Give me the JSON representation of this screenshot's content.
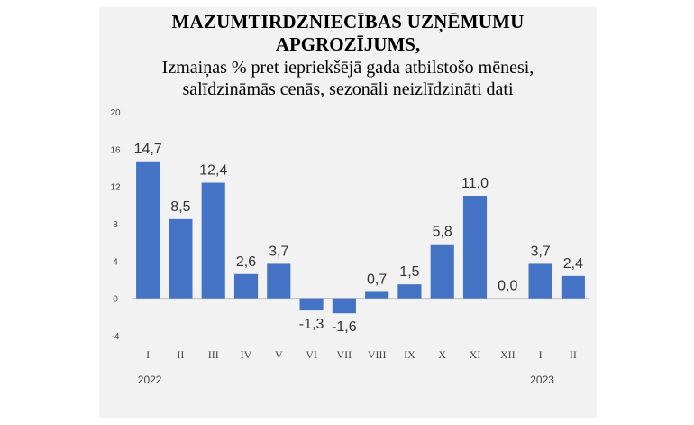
{
  "chart_data": {
    "type": "bar",
    "title_line1": "MAZUMTIRDZNIECĪBAS UZŅĒMUMU",
    "title_line2": "APGROZĪJUMS,",
    "subtitle_line1": "Izmaiņas % pret iepriekšējā gada atbilstošo mēnesi,",
    "subtitle_line2": "salīdzināmās cenās, sezonāli neizlīdzināti dati",
    "categories": [
      "I",
      "II",
      "III",
      "IV",
      "V",
      "VI",
      "VII",
      "VIII",
      "IX",
      "X",
      "XI",
      "XII",
      "I",
      "II"
    ],
    "values": [
      14.7,
      8.5,
      12.4,
      2.6,
      3.7,
      -1.3,
      -1.6,
      0.7,
      1.5,
      5.8,
      11.0,
      0.0,
      3.7,
      2.4
    ],
    "data_labels": [
      "14,7",
      "8,5",
      "12,4",
      "2,6",
      "3,7",
      "-1,3",
      "-1,6",
      "0,7",
      "1,5",
      "5,8",
      "11,0",
      "0,0",
      "3,7",
      "2,4"
    ],
    "year_labels": [
      {
        "text": "2022",
        "category_index": 0
      },
      {
        "text": "2023",
        "category_index": 12
      }
    ],
    "y_ticks": [
      -4,
      0,
      4,
      8,
      12,
      16,
      20
    ],
    "ylim": [
      -4,
      20
    ],
    "xlabel": "",
    "ylabel": "",
    "grid": false,
    "bar_color": "#4472c4"
  }
}
